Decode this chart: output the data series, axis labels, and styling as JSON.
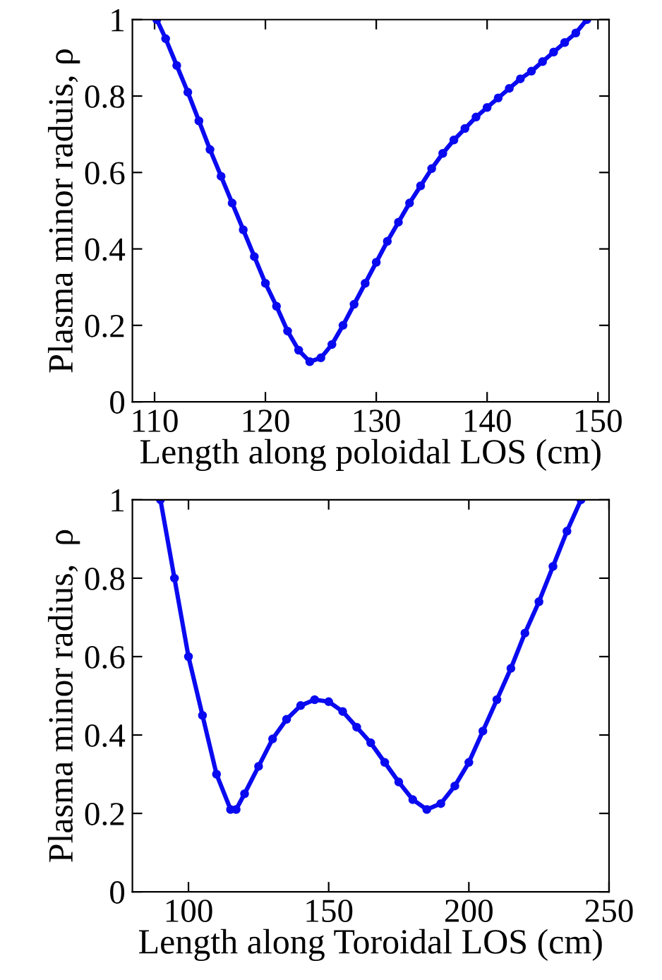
{
  "chart_data": [
    {
      "type": "line",
      "xlabel": "Length along poloidal LOS (cm)",
      "ylabel": "Plasma minor raduis, ρ",
      "marker": "circle",
      "line_style": "solid",
      "grid": false,
      "legend": false,
      "xlim": [
        108,
        151
      ],
      "xticks": [
        110,
        120,
        130,
        140,
        150
      ],
      "ylim": [
        0,
        1
      ],
      "yticks": [
        0,
        0.2,
        0.4,
        0.6,
        0.8,
        1
      ],
      "series": [
        {
          "color": "#0a0af0",
          "x": [
            110.2,
            111,
            112,
            113,
            114,
            115,
            116,
            117,
            118,
            119,
            120,
            121,
            122,
            123,
            124,
            125,
            126,
            127,
            128,
            129,
            130,
            131,
            132,
            133,
            134,
            135,
            136,
            137,
            138,
            139,
            140,
            141,
            142,
            143,
            144,
            145,
            146,
            147,
            148,
            149
          ],
          "values": [
            1.0,
            0.95,
            0.88,
            0.81,
            0.735,
            0.66,
            0.59,
            0.52,
            0.45,
            0.38,
            0.31,
            0.25,
            0.185,
            0.135,
            0.105,
            0.115,
            0.15,
            0.2,
            0.255,
            0.31,
            0.365,
            0.42,
            0.47,
            0.52,
            0.565,
            0.61,
            0.65,
            0.685,
            0.715,
            0.745,
            0.77,
            0.795,
            0.82,
            0.845,
            0.865,
            0.89,
            0.915,
            0.94,
            0.965,
            1.0
          ]
        }
      ]
    },
    {
      "type": "line",
      "xlabel": "Length along Toroidal LOS (cm)",
      "ylabel": "Plasma minor radius,  ρ",
      "marker": "circle",
      "line_style": "solid",
      "grid": false,
      "legend": false,
      "xlim": [
        80,
        250
      ],
      "xticks": [
        100,
        150,
        200,
        250
      ],
      "ylim": [
        0,
        1
      ],
      "yticks": [
        0,
        0.2,
        0.4,
        0.6,
        0.8,
        1
      ],
      "series": [
        {
          "color": "#0a0af0",
          "x": [
            90,
            95,
            100,
            105,
            110,
            115,
            117,
            120,
            125,
            130,
            135,
            140,
            145,
            150,
            155,
            160,
            165,
            170,
            175,
            180,
            185,
            190,
            195,
            200,
            205,
            210,
            215,
            220,
            225,
            230,
            235,
            240
          ],
          "values": [
            1.0,
            0.8,
            0.6,
            0.45,
            0.3,
            0.21,
            0.21,
            0.25,
            0.32,
            0.39,
            0.44,
            0.475,
            0.49,
            0.485,
            0.46,
            0.42,
            0.38,
            0.33,
            0.28,
            0.235,
            0.21,
            0.225,
            0.27,
            0.33,
            0.41,
            0.49,
            0.57,
            0.66,
            0.74,
            0.83,
            0.92,
            1.0
          ]
        }
      ]
    }
  ]
}
